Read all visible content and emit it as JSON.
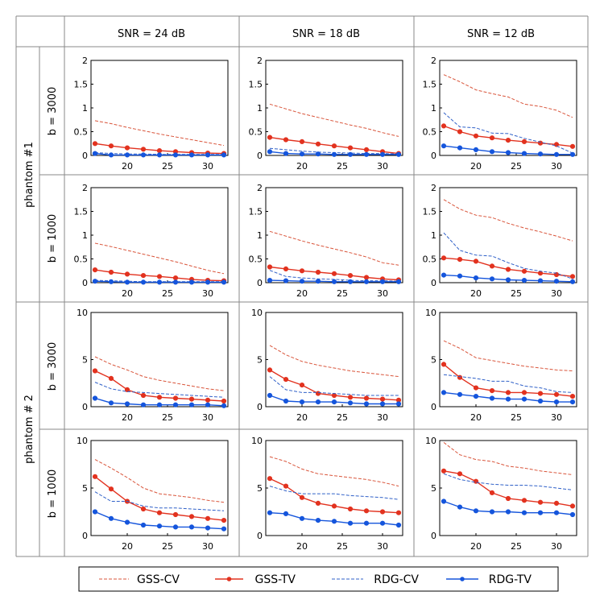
{
  "colors": {
    "gss_cv": "#d9553b",
    "gss_tv": "#e2321f",
    "rdg_cv": "#2f60c8",
    "rdg_tv": "#1555dc",
    "grid": "#888888"
  },
  "column_headers": [
    "SNR = 24 dB",
    "SNR = 18 dB",
    "SNR = 12 dB"
  ],
  "phantom_labels": [
    "phantom #1",
    "phantom # 2"
  ],
  "b_labels": [
    "b = 3000",
    "b = 1000",
    "b = 3000",
    "b = 1000"
  ],
  "legend": [
    "GSS-CV",
    "GSS-TV",
    "RDG-CV",
    "RDG-TV"
  ],
  "chart_data": [
    {
      "type": "line",
      "row": 0,
      "col": 0,
      "xlim": [
        15.5,
        32.5
      ],
      "ylim": [
        0,
        2
      ],
      "xticks": [
        "20",
        "25",
        "30"
      ],
      "yticks": [
        "0",
        "0.5",
        "1",
        "1.5",
        "2"
      ],
      "x": [
        16,
        18,
        20,
        22,
        24,
        26,
        28,
        30,
        32
      ],
      "series": [
        {
          "name": "GSS-CV",
          "values": [
            0.73,
            0.67,
            0.59,
            0.52,
            0.45,
            0.39,
            0.33,
            0.27,
            0.21
          ]
        },
        {
          "name": "GSS-TV",
          "values": [
            0.25,
            0.2,
            0.16,
            0.13,
            0.1,
            0.08,
            0.06,
            0.05,
            0.04
          ]
        },
        {
          "name": "RDG-CV",
          "values": [
            0.06,
            0.04,
            0.03,
            0.03,
            0.02,
            0.02,
            0.02,
            0.02,
            0.02
          ]
        },
        {
          "name": "RDG-TV",
          "values": [
            0.04,
            0.01,
            0.01,
            0.01,
            0.01,
            0.01,
            0.01,
            0.01,
            0.01
          ]
        }
      ]
    },
    {
      "type": "line",
      "row": 0,
      "col": 1,
      "xlim": [
        15.5,
        32.5
      ],
      "ylim": [
        0,
        2
      ],
      "xticks": [
        "20",
        "25",
        "30"
      ],
      "yticks": [
        "0",
        "0.5",
        "1",
        "1.5",
        "2"
      ],
      "x": [
        16,
        18,
        20,
        22,
        24,
        26,
        28,
        30,
        32
      ],
      "series": [
        {
          "name": "GSS-CV",
          "values": [
            1.08,
            0.98,
            0.88,
            0.8,
            0.72,
            0.64,
            0.57,
            0.48,
            0.4
          ]
        },
        {
          "name": "GSS-TV",
          "values": [
            0.38,
            0.33,
            0.29,
            0.24,
            0.2,
            0.16,
            0.12,
            0.08,
            0.04
          ]
        },
        {
          "name": "RDG-CV",
          "values": [
            0.15,
            0.12,
            0.09,
            0.07,
            0.06,
            0.05,
            0.04,
            0.04,
            0.03
          ]
        },
        {
          "name": "RDG-TV",
          "values": [
            0.08,
            0.04,
            0.03,
            0.03,
            0.02,
            0.02,
            0.02,
            0.02,
            0.02
          ]
        }
      ]
    },
    {
      "type": "line",
      "row": 0,
      "col": 2,
      "xlim": [
        15.5,
        32.5
      ],
      "ylim": [
        0,
        2
      ],
      "xticks": [
        "20",
        "25",
        "30"
      ],
      "yticks": [
        "0",
        "0.5",
        "1",
        "1.5",
        "2"
      ],
      "x": [
        16,
        18,
        20,
        22,
        24,
        26,
        28,
        30,
        32
      ],
      "series": [
        {
          "name": "GSS-CV",
          "values": [
            1.7,
            1.55,
            1.38,
            1.3,
            1.23,
            1.08,
            1.03,
            0.95,
            0.8
          ]
        },
        {
          "name": "GSS-TV",
          "values": [
            0.62,
            0.5,
            0.41,
            0.37,
            0.32,
            0.29,
            0.26,
            0.23,
            0.19
          ]
        },
        {
          "name": "RDG-CV",
          "values": [
            0.9,
            0.6,
            0.58,
            0.47,
            0.46,
            0.36,
            0.28,
            0.2,
            0.05
          ]
        },
        {
          "name": "RDG-TV",
          "values": [
            0.2,
            0.16,
            0.12,
            0.08,
            0.06,
            0.04,
            0.03,
            0.02,
            0.02
          ]
        }
      ]
    },
    {
      "type": "line",
      "row": 1,
      "col": 0,
      "xlim": [
        15.5,
        32.5
      ],
      "ylim": [
        0,
        2
      ],
      "xticks": [
        "20",
        "25",
        "30"
      ],
      "yticks": [
        "0",
        "0.5",
        "1",
        "1.5",
        "2"
      ],
      "x": [
        16,
        18,
        20,
        22,
        24,
        26,
        28,
        30,
        32
      ],
      "series": [
        {
          "name": "GSS-CV",
          "values": [
            0.83,
            0.76,
            0.68,
            0.6,
            0.52,
            0.44,
            0.35,
            0.26,
            0.19
          ]
        },
        {
          "name": "GSS-TV",
          "values": [
            0.27,
            0.22,
            0.18,
            0.15,
            0.13,
            0.1,
            0.07,
            0.05,
            0.04
          ]
        },
        {
          "name": "RDG-CV",
          "values": [
            0.05,
            0.04,
            0.03,
            0.02,
            0.02,
            0.02,
            0.02,
            0.02,
            0.02
          ]
        },
        {
          "name": "RDG-TV",
          "values": [
            0.03,
            0.02,
            0.01,
            0.01,
            0.01,
            0.01,
            0.01,
            0.01,
            0.01
          ]
        }
      ]
    },
    {
      "type": "line",
      "row": 1,
      "col": 1,
      "xlim": [
        15.5,
        32.5
      ],
      "ylim": [
        0,
        2
      ],
      "xticks": [
        "20",
        "25",
        "30"
      ],
      "yticks": [
        "0",
        "0.5",
        "1",
        "1.5",
        "2"
      ],
      "x": [
        16,
        18,
        20,
        22,
        24,
        26,
        28,
        30,
        32
      ],
      "series": [
        {
          "name": "GSS-CV",
          "values": [
            1.08,
            0.98,
            0.88,
            0.79,
            0.71,
            0.63,
            0.54,
            0.42,
            0.37
          ]
        },
        {
          "name": "GSS-TV",
          "values": [
            0.33,
            0.29,
            0.25,
            0.22,
            0.19,
            0.15,
            0.11,
            0.08,
            0.06
          ]
        },
        {
          "name": "RDG-CV",
          "values": [
            0.26,
            0.13,
            0.1,
            0.08,
            0.07,
            0.05,
            0.04,
            0.04,
            0.03
          ]
        },
        {
          "name": "RDG-TV",
          "values": [
            0.05,
            0.04,
            0.03,
            0.03,
            0.02,
            0.02,
            0.02,
            0.02,
            0.02
          ]
        }
      ]
    },
    {
      "type": "line",
      "row": 1,
      "col": 2,
      "xlim": [
        15.5,
        32.5
      ],
      "ylim": [
        0,
        2
      ],
      "xticks": [
        "20",
        "25",
        "30"
      ],
      "yticks": [
        "0",
        "0.5",
        "1",
        "1.5",
        "2"
      ],
      "x": [
        16,
        18,
        20,
        22,
        24,
        26,
        28,
        30,
        32
      ],
      "series": [
        {
          "name": "GSS-CV",
          "values": [
            1.75,
            1.55,
            1.42,
            1.37,
            1.25,
            1.15,
            1.07,
            0.98,
            0.88
          ]
        },
        {
          "name": "GSS-TV",
          "values": [
            0.52,
            0.49,
            0.45,
            0.35,
            0.28,
            0.24,
            0.2,
            0.17,
            0.13
          ]
        },
        {
          "name": "RDG-CV",
          "values": [
            1.05,
            0.68,
            0.58,
            0.56,
            0.42,
            0.3,
            0.24,
            0.2,
            0.08
          ]
        },
        {
          "name": "RDG-TV",
          "values": [
            0.16,
            0.14,
            0.1,
            0.08,
            0.06,
            0.05,
            0.04,
            0.03,
            0.02
          ]
        }
      ]
    },
    {
      "type": "line",
      "row": 2,
      "col": 0,
      "xlim": [
        15.5,
        32.5
      ],
      "ylim": [
        0,
        10
      ],
      "xticks": [
        "20",
        "25",
        "30"
      ],
      "yticks": [
        "0",
        "5",
        "10"
      ],
      "x": [
        16,
        18,
        20,
        22,
        24,
        26,
        28,
        30,
        32
      ],
      "series": [
        {
          "name": "GSS-CV",
          "values": [
            5.3,
            4.5,
            3.9,
            3.2,
            2.8,
            2.5,
            2.2,
            1.9,
            1.7
          ]
        },
        {
          "name": "GSS-TV",
          "values": [
            3.8,
            3.0,
            1.8,
            1.2,
            1.0,
            0.9,
            0.8,
            0.7,
            0.6
          ]
        },
        {
          "name": "RDG-CV",
          "values": [
            2.6,
            1.9,
            1.6,
            1.5,
            1.4,
            1.3,
            1.2,
            1.1,
            1.0
          ]
        },
        {
          "name": "RDG-TV",
          "values": [
            0.9,
            0.4,
            0.3,
            0.2,
            0.2,
            0.2,
            0.2,
            0.2,
            0.1
          ]
        }
      ]
    },
    {
      "type": "line",
      "row": 2,
      "col": 1,
      "xlim": [
        15.5,
        32.5
      ],
      "ylim": [
        0,
        10
      ],
      "xticks": [
        "20",
        "25",
        "30"
      ],
      "yticks": [
        "0",
        "5",
        "10"
      ],
      "x": [
        16,
        18,
        20,
        22,
        24,
        26,
        28,
        30,
        32
      ],
      "series": [
        {
          "name": "GSS-CV",
          "values": [
            6.5,
            5.5,
            4.8,
            4.4,
            4.1,
            3.8,
            3.6,
            3.4,
            3.2
          ]
        },
        {
          "name": "GSS-TV",
          "values": [
            3.9,
            2.9,
            2.3,
            1.4,
            1.2,
            1.0,
            0.9,
            0.8,
            0.7
          ]
        },
        {
          "name": "RDG-CV",
          "values": [
            3.2,
            1.8,
            1.5,
            1.5,
            1.4,
            1.3,
            1.2,
            1.2,
            1.2
          ]
        },
        {
          "name": "RDG-TV",
          "values": [
            1.2,
            0.6,
            0.5,
            0.5,
            0.5,
            0.4,
            0.3,
            0.3,
            0.3
          ]
        }
      ]
    },
    {
      "type": "line",
      "row": 2,
      "col": 2,
      "xlim": [
        15.5,
        32.5
      ],
      "ylim": [
        0,
        10
      ],
      "xticks": [
        "20",
        "25",
        "30"
      ],
      "yticks": [
        "0",
        "5",
        "10"
      ],
      "x": [
        16,
        18,
        20,
        22,
        24,
        26,
        28,
        30,
        32
      ],
      "series": [
        {
          "name": "GSS-CV",
          "values": [
            7.0,
            6.2,
            5.2,
            4.9,
            4.6,
            4.3,
            4.1,
            3.9,
            3.8
          ]
        },
        {
          "name": "GSS-TV",
          "values": [
            4.5,
            3.1,
            2.0,
            1.7,
            1.5,
            1.5,
            1.4,
            1.3,
            1.1
          ]
        },
        {
          "name": "RDG-CV",
          "values": [
            3.4,
            3.2,
            3.0,
            2.7,
            2.7,
            2.2,
            2.0,
            1.6,
            1.5
          ]
        },
        {
          "name": "RDG-TV",
          "values": [
            1.5,
            1.3,
            1.1,
            0.9,
            0.8,
            0.8,
            0.6,
            0.5,
            0.5
          ]
        }
      ]
    },
    {
      "type": "line",
      "row": 3,
      "col": 0,
      "xlim": [
        15.5,
        32.5
      ],
      "ylim": [
        0,
        10
      ],
      "xticks": [
        "20",
        "25",
        "30"
      ],
      "yticks": [
        "0",
        "5",
        "10"
      ],
      "x": [
        16,
        18,
        20,
        22,
        24,
        26,
        28,
        30,
        32
      ],
      "series": [
        {
          "name": "GSS-CV",
          "values": [
            8.0,
            7.1,
            6.1,
            5.0,
            4.4,
            4.2,
            4.0,
            3.7,
            3.5
          ]
        },
        {
          "name": "GSS-TV",
          "values": [
            6.2,
            4.9,
            3.6,
            2.8,
            2.4,
            2.2,
            2.0,
            1.8,
            1.6
          ]
        },
        {
          "name": "RDG-CV",
          "values": [
            4.6,
            3.6,
            3.6,
            3.1,
            2.9,
            2.9,
            2.8,
            2.7,
            2.6
          ]
        },
        {
          "name": "RDG-TV",
          "values": [
            2.5,
            1.8,
            1.4,
            1.1,
            1.0,
            0.9,
            0.9,
            0.8,
            0.7
          ]
        }
      ]
    },
    {
      "type": "line",
      "row": 3,
      "col": 1,
      "xlim": [
        15.5,
        32.5
      ],
      "ylim": [
        0,
        10
      ],
      "xticks": [
        "20",
        "25",
        "30"
      ],
      "yticks": [
        "0",
        "5",
        "10"
      ],
      "x": [
        16,
        18,
        20,
        22,
        24,
        26,
        28,
        30,
        32
      ],
      "series": [
        {
          "name": "GSS-CV",
          "values": [
            8.3,
            7.8,
            7.0,
            6.5,
            6.3,
            6.1,
            5.9,
            5.6,
            5.2
          ]
        },
        {
          "name": "GSS-TV",
          "values": [
            6.0,
            5.2,
            4.0,
            3.4,
            3.1,
            2.8,
            2.6,
            2.5,
            2.4
          ]
        },
        {
          "name": "RDG-CV",
          "values": [
            5.2,
            4.7,
            4.4,
            4.4,
            4.4,
            4.2,
            4.1,
            4.0,
            3.8
          ]
        },
        {
          "name": "RDG-TV",
          "values": [
            2.4,
            2.3,
            1.8,
            1.6,
            1.5,
            1.3,
            1.3,
            1.3,
            1.1
          ]
        }
      ]
    },
    {
      "type": "line",
      "row": 3,
      "col": 2,
      "xlim": [
        15.5,
        32.5
      ],
      "ylim": [
        0,
        10
      ],
      "xticks": [
        "20",
        "25",
        "30"
      ],
      "yticks": [
        "0",
        "5",
        "10"
      ],
      "x": [
        16,
        18,
        20,
        22,
        24,
        26,
        28,
        30,
        32
      ],
      "series": [
        {
          "name": "GSS-CV",
          "values": [
            9.8,
            8.5,
            8.0,
            7.8,
            7.3,
            7.1,
            6.8,
            6.6,
            6.4
          ]
        },
        {
          "name": "GSS-TV",
          "values": [
            6.8,
            6.5,
            5.7,
            4.5,
            3.9,
            3.7,
            3.5,
            3.4,
            3.1
          ]
        },
        {
          "name": "RDG-CV",
          "values": [
            6.5,
            5.9,
            5.6,
            5.4,
            5.3,
            5.3,
            5.2,
            5.0,
            4.8
          ]
        },
        {
          "name": "RDG-TV",
          "values": [
            3.6,
            3.0,
            2.6,
            2.5,
            2.5,
            2.4,
            2.4,
            2.4,
            2.2
          ]
        }
      ]
    }
  ]
}
